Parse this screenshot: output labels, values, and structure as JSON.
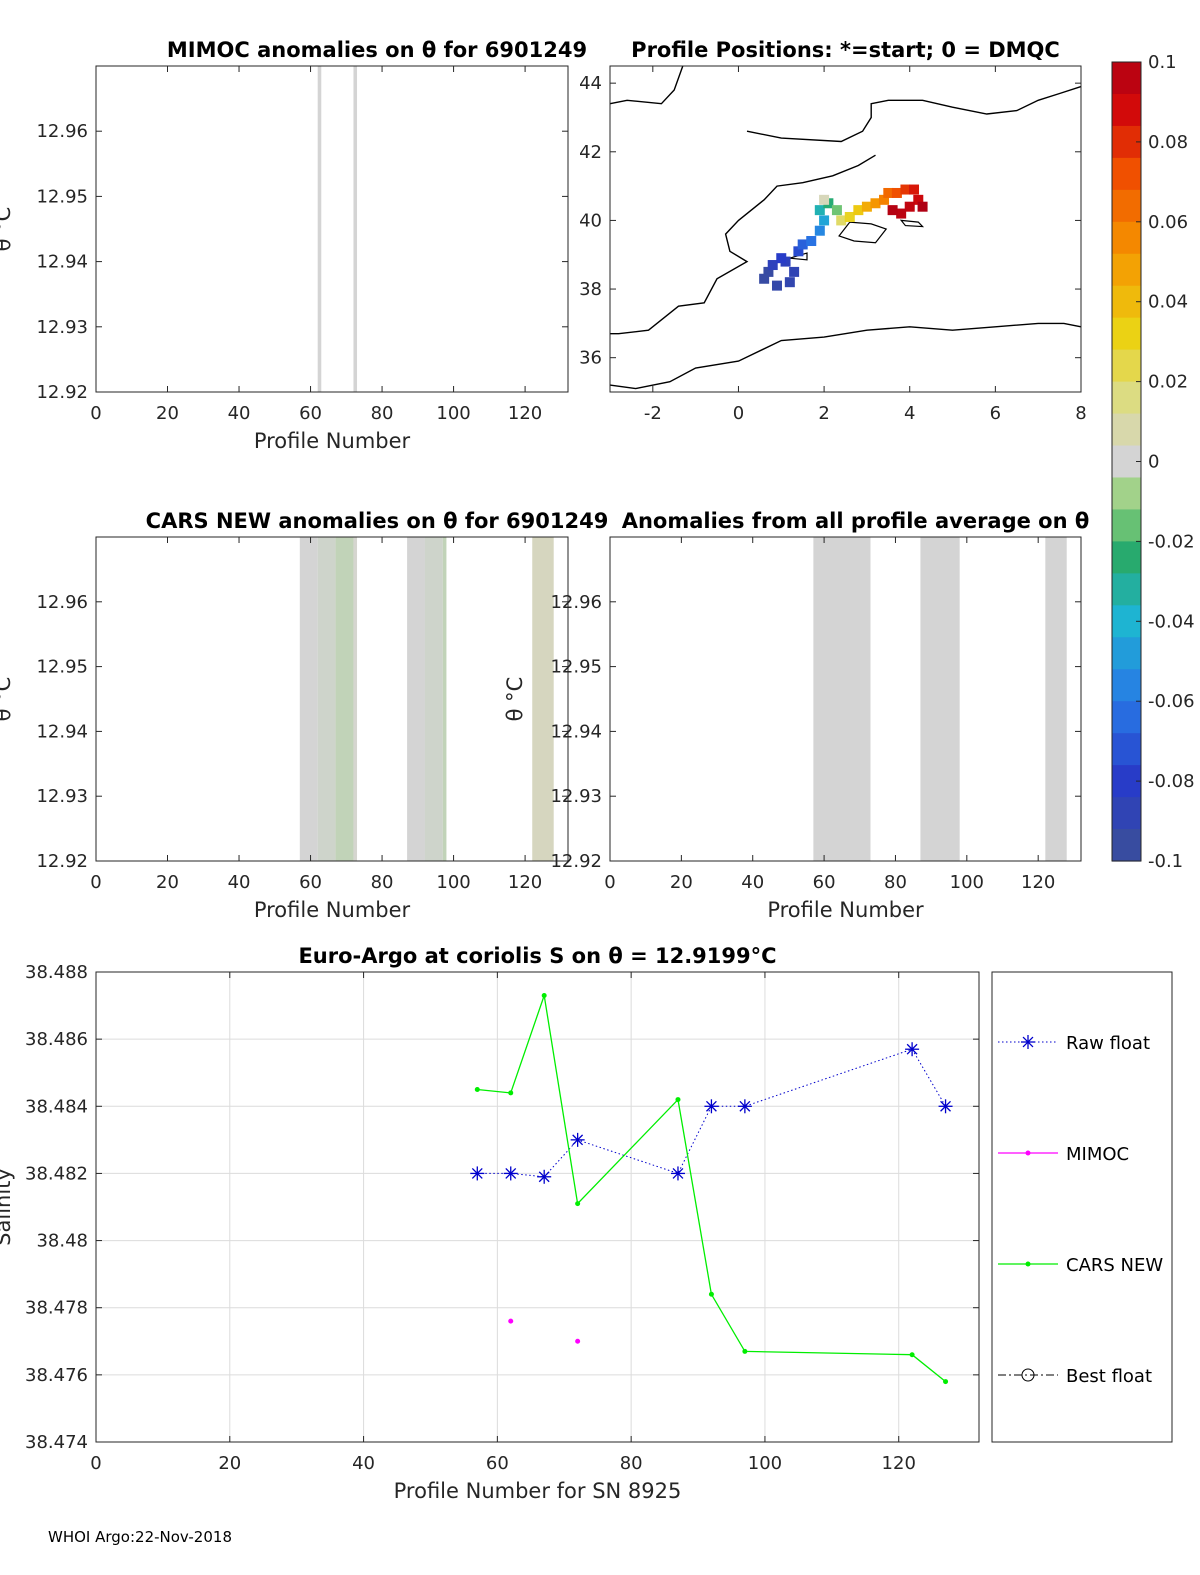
{
  "colors": {
    "raw_float": "#0000cc",
    "mimoc": "#ff00ff",
    "cars_new": "#00ee00",
    "best_float": "#000000",
    "grid": "#dcdcdc",
    "band_grey": "#d4d4d4"
  },
  "footer": "WHOI Argo:22-Nov-2018",
  "chart_data": [
    {
      "type": "heatmap",
      "title": "MIMOC anomalies on θ  for 6901249",
      "xlabel": "Profile Number",
      "ylabel": "θ °C",
      "xlim": [
        0,
        132
      ],
      "ylim": [
        12.92,
        12.97
      ],
      "xticks": [
        0,
        20,
        40,
        60,
        80,
        100,
        120
      ],
      "yticks": [
        12.92,
        12.93,
        12.94,
        12.95,
        12.96
      ],
      "bands": [
        {
          "x0": 62,
          "x1": 63,
          "anomaly": 0.0
        },
        {
          "x0": 72,
          "x1": 73,
          "anomaly": 0.0
        }
      ]
    },
    {
      "type": "scatter",
      "title": "Profile Positions: *=start; 0 = DMQC",
      "xlim": [
        -3,
        8
      ],
      "ylim": [
        35,
        44.5
      ],
      "xticks": [
        -2,
        0,
        2,
        4,
        6,
        8
      ],
      "yticks": [
        36,
        38,
        40,
        42,
        44
      ],
      "colorbar": {
        "ticks": [
          0.1,
          0.08,
          0.06,
          0.04,
          0.02,
          0,
          -0.02,
          -0.04,
          -0.06,
          -0.08,
          -0.1
        ],
        "tick_labels": [
          "0.1",
          "0.08",
          "0.06",
          "0.04",
          "0.02",
          "0",
          "-0.02",
          "-0.04",
          "-0.06",
          "-0.08",
          "-0.1"
        ],
        "range": [
          -0.1,
          0.1
        ]
      },
      "track": [
        {
          "lon": 0.7,
          "lat": 38.5,
          "v": -0.095
        },
        {
          "lon": 0.6,
          "lat": 38.3,
          "v": -0.095
        },
        {
          "lon": 0.9,
          "lat": 38.1,
          "v": -0.092
        },
        {
          "lon": 1.2,
          "lat": 38.2,
          "v": -0.09
        },
        {
          "lon": 1.3,
          "lat": 38.5,
          "v": -0.088
        },
        {
          "lon": 1.1,
          "lat": 38.8,
          "v": -0.085
        },
        {
          "lon": 0.8,
          "lat": 38.7,
          "v": -0.085
        },
        {
          "lon": 1.0,
          "lat": 38.9,
          "v": -0.08
        },
        {
          "lon": 1.4,
          "lat": 39.1,
          "v": -0.075
        },
        {
          "lon": 1.5,
          "lat": 39.3,
          "v": -0.068
        },
        {
          "lon": 1.7,
          "lat": 39.4,
          "v": -0.062
        },
        {
          "lon": 1.9,
          "lat": 39.7,
          "v": -0.055
        },
        {
          "lon": 2.0,
          "lat": 40.0,
          "v": -0.045
        },
        {
          "lon": 1.9,
          "lat": 40.3,
          "v": -0.035
        },
        {
          "lon": 2.1,
          "lat": 40.5,
          "v": -0.025
        },
        {
          "lon": 2.3,
          "lat": 40.3,
          "v": -0.015
        },
        {
          "lon": 2.0,
          "lat": 40.6,
          "v": 0.005
        },
        {
          "lon": 2.4,
          "lat": 40.0,
          "v": 0.02
        },
        {
          "lon": 2.6,
          "lat": 40.1,
          "v": 0.03
        },
        {
          "lon": 2.8,
          "lat": 40.3,
          "v": 0.035
        },
        {
          "lon": 3.0,
          "lat": 40.4,
          "v": 0.045
        },
        {
          "lon": 3.2,
          "lat": 40.5,
          "v": 0.052
        },
        {
          "lon": 3.4,
          "lat": 40.6,
          "v": 0.058
        },
        {
          "lon": 3.5,
          "lat": 40.8,
          "v": 0.065
        },
        {
          "lon": 3.7,
          "lat": 40.8,
          "v": 0.072
        },
        {
          "lon": 3.9,
          "lat": 40.9,
          "v": 0.078
        },
        {
          "lon": 4.1,
          "lat": 40.9,
          "v": 0.085
        },
        {
          "lon": 4.2,
          "lat": 40.6,
          "v": 0.09
        },
        {
          "lon": 4.0,
          "lat": 40.4,
          "v": 0.094
        },
        {
          "lon": 3.8,
          "lat": 40.2,
          "v": 0.096
        },
        {
          "lon": 3.6,
          "lat": 40.3,
          "v": 0.098
        },
        {
          "lon": 4.3,
          "lat": 40.4,
          "v": 0.1
        }
      ]
    },
    {
      "type": "heatmap",
      "title": "CARS NEW anomalies on θ for 6901249",
      "xlabel": "Profile Number",
      "ylabel": "θ °C",
      "xlim": [
        0,
        132
      ],
      "ylim": [
        12.92,
        12.97
      ],
      "xticks": [
        0,
        20,
        40,
        60,
        80,
        100,
        120
      ],
      "yticks": [
        12.92,
        12.93,
        12.94,
        12.95,
        12.96
      ],
      "bands": [
        {
          "x0": 57,
          "x1": 62,
          "anomaly": 0.0
        },
        {
          "x0": 62,
          "x1": 67,
          "anomaly": -0.001
        },
        {
          "x0": 67,
          "x1": 72,
          "anomaly": -0.003
        },
        {
          "x0": 72,
          "x1": 73,
          "anomaly": 0.001
        },
        {
          "x0": 87,
          "x1": 92,
          "anomaly": 0.0
        },
        {
          "x0": 92,
          "x1": 97,
          "anomaly": -0.001
        },
        {
          "x0": 97,
          "x1": 98,
          "anomaly": -0.003
        },
        {
          "x0": 122,
          "x1": 128,
          "anomaly": 0.004
        }
      ]
    },
    {
      "type": "heatmap",
      "title": "Anomalies from all profile average on θ",
      "xlabel": "Profile Number",
      "ylabel": "θ °C",
      "xlim": [
        0,
        132
      ],
      "ylim": [
        12.92,
        12.97
      ],
      "xticks": [
        0,
        20,
        40,
        60,
        80,
        100,
        120
      ],
      "yticks": [
        12.92,
        12.93,
        12.94,
        12.95,
        12.96
      ],
      "bands": [
        {
          "x0": 57,
          "x1": 73,
          "anomaly": 0.0
        },
        {
          "x0": 87,
          "x1": 98,
          "anomaly": 0.0
        },
        {
          "x0": 122,
          "x1": 128,
          "anomaly": 0.0
        }
      ]
    },
    {
      "type": "line",
      "title": "Euro-Argo at coriolis S on θ = 12.9199°C",
      "xlabel": "Profile Number for SN 8925",
      "ylabel": "Salinity",
      "xlim": [
        0,
        132
      ],
      "ylim": [
        38.474,
        38.488
      ],
      "xticks": [
        0,
        20,
        40,
        60,
        80,
        100,
        120
      ],
      "yticks": [
        38.474,
        38.476,
        38.478,
        38.48,
        38.482,
        38.484,
        38.486,
        38.488
      ],
      "ytick_labels": [
        "38.474",
        "38.476",
        "38.478",
        "38.48",
        "38.482",
        "38.484",
        "38.486",
        "38.488"
      ],
      "grid": true,
      "legend_position": "right, outside",
      "series": [
        {
          "name": "Raw float",
          "style": "dotted-star",
          "x": [
            57,
            62,
            67,
            72,
            87,
            92,
            97,
            122,
            127
          ],
          "y": [
            38.482,
            38.482,
            38.4819,
            38.483,
            38.482,
            38.484,
            38.484,
            38.4857,
            38.484
          ]
        },
        {
          "name": "MIMOC",
          "style": "dot",
          "x": [
            62,
            72
          ],
          "y": [
            38.4776,
            38.477
          ]
        },
        {
          "name": "CARS NEW",
          "style": "solid-dot",
          "x": [
            57,
            62,
            67,
            72,
            87,
            92,
            97,
            122,
            127
          ],
          "y": [
            38.4845,
            38.4844,
            38.4873,
            38.4811,
            38.4842,
            38.4784,
            38.4767,
            38.4766,
            38.4758
          ]
        },
        {
          "name": "Best float",
          "style": "dashdot-circle",
          "x": [],
          "y": []
        }
      ]
    }
  ]
}
